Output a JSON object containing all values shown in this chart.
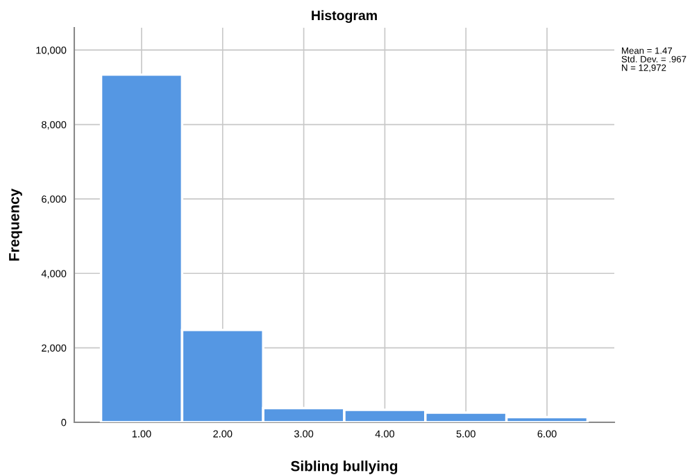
{
  "chart_data": {
    "type": "histogram",
    "title": "Histogram",
    "xlabel": "Sibling bullying",
    "ylabel": "Frequency",
    "bins": [
      0.5,
      1.5,
      2.5,
      3.5,
      4.5,
      5.5,
      6.5
    ],
    "values": [
      9340,
      2480,
      380,
      335,
      260,
      140
    ],
    "color": "#5597e3",
    "xlim": [
      0.17,
      6.83
    ],
    "xticks": [
      {
        "value": 1,
        "label": "1.00"
      },
      {
        "value": 2,
        "label": "2.00"
      },
      {
        "value": 3,
        "label": "3.00"
      },
      {
        "value": 4,
        "label": "4.00"
      },
      {
        "value": 5,
        "label": "5.00"
      },
      {
        "value": 6,
        "label": "6.00"
      }
    ],
    "ylim": [
      0,
      10600
    ],
    "yticks": [
      {
        "value": 0,
        "label": "0"
      },
      {
        "value": 2000,
        "label": "2,000"
      },
      {
        "value": 4000,
        "label": "4,000"
      },
      {
        "value": 6000,
        "label": "6,000"
      },
      {
        "value": 8000,
        "label": "8,000"
      },
      {
        "value": 10000,
        "label": "10,000"
      }
    ],
    "grid": true,
    "annotations": [
      "Mean = 1.47\nStd. Dev. = .967\nN = 12,972"
    ]
  }
}
